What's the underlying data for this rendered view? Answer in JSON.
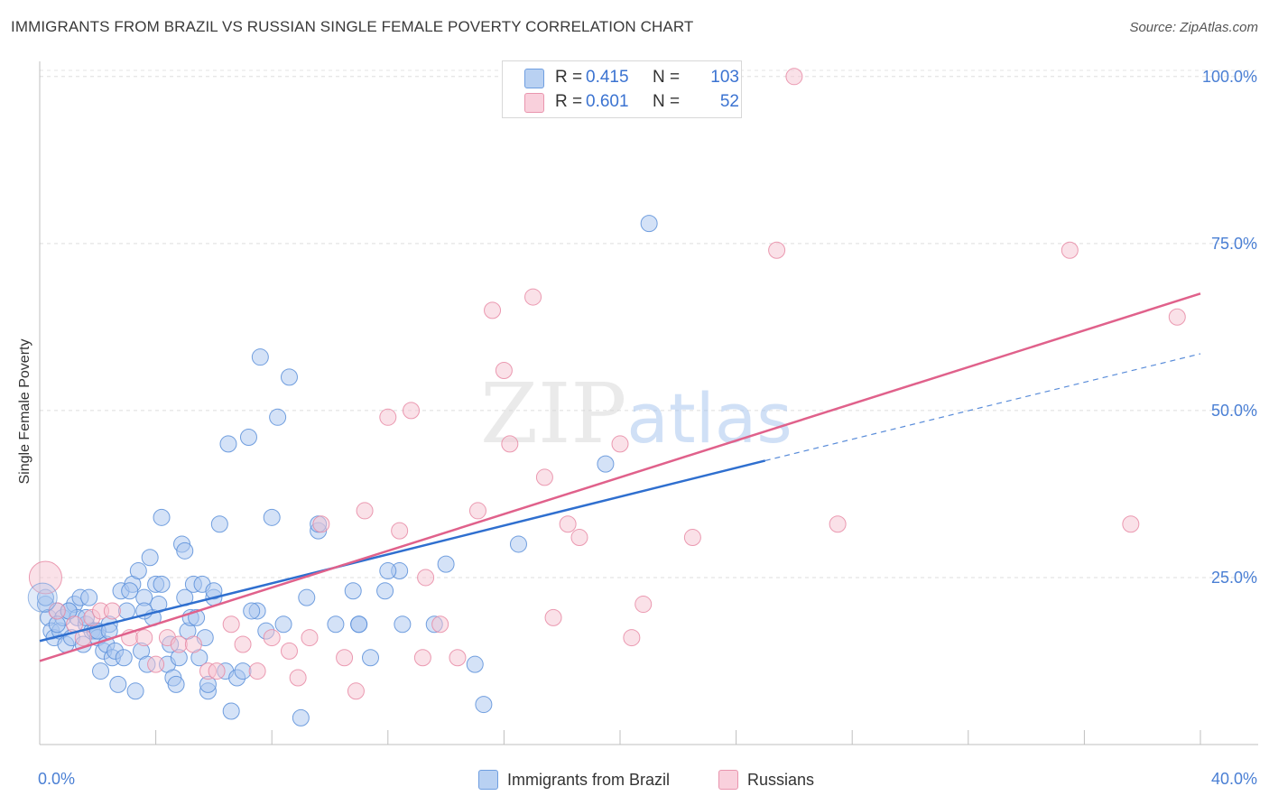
{
  "chart_data": {
    "type": "scatter",
    "title": "IMMIGRANTS FROM BRAZIL VS RUSSIAN SINGLE FEMALE POVERTY CORRELATION CHART",
    "source": "Source: ZipAtlas.com",
    "xlabel": "",
    "ylabel": "Single Female Poverty",
    "xlim": [
      0,
      40
    ],
    "ylim": [
      0,
      102
    ],
    "x_tick_labels": [
      "0.0%",
      "40.0%"
    ],
    "y_ticks": [
      {
        "value": 25,
        "label": "25.0%"
      },
      {
        "value": 50,
        "label": "50.0%"
      },
      {
        "value": 75,
        "label": "75.0%"
      },
      {
        "value": 100,
        "label": "100.0%"
      }
    ],
    "grid": true,
    "watermark": "ZIPatlas",
    "legend": [
      {
        "r_label": "R =",
        "r_value": "0.415",
        "n_label": "N =",
        "n_value": "103"
      },
      {
        "r_label": "R =",
        "r_value": "0.601",
        "n_label": "N =",
        "n_value": "52"
      }
    ],
    "series": [
      {
        "name": "Immigrants from Brazil",
        "color": "#5b8fd9",
        "fill": "#a9c6ef",
        "trend": {
          "x0": 0,
          "y0": 15.5,
          "x1": 25,
          "y1": 42.5,
          "dash_to_x": 40,
          "dash_to_y": 58.5,
          "color": "#2f6fcf"
        },
        "points": [
          [
            0.2,
            21
          ],
          [
            0.3,
            19
          ],
          [
            0.4,
            17
          ],
          [
            0.5,
            16
          ],
          [
            0.6,
            20
          ],
          [
            0.7,
            17
          ],
          [
            0.8,
            19
          ],
          [
            0.9,
            15
          ],
          [
            1.0,
            20
          ],
          [
            1.1,
            16
          ],
          [
            1.2,
            21
          ],
          [
            1.3,
            19
          ],
          [
            1.4,
            22
          ],
          [
            1.5,
            15
          ],
          [
            1.6,
            18
          ],
          [
            1.7,
            22
          ],
          [
            1.8,
            17
          ],
          [
            1.9,
            17
          ],
          [
            2.0,
            16
          ],
          [
            2.1,
            11
          ],
          [
            2.2,
            14
          ],
          [
            2.3,
            15
          ],
          [
            2.4,
            18
          ],
          [
            2.5,
            13
          ],
          [
            2.6,
            14
          ],
          [
            2.7,
            9
          ],
          [
            2.8,
            23
          ],
          [
            2.9,
            13
          ],
          [
            3.0,
            20
          ],
          [
            3.2,
            24
          ],
          [
            3.3,
            8
          ],
          [
            3.4,
            26
          ],
          [
            3.5,
            14
          ],
          [
            3.6,
            22
          ],
          [
            3.7,
            12
          ],
          [
            3.8,
            28
          ],
          [
            3.9,
            19
          ],
          [
            4.0,
            24
          ],
          [
            4.1,
            21
          ],
          [
            4.2,
            34
          ],
          [
            4.4,
            12
          ],
          [
            4.5,
            15
          ],
          [
            4.6,
            10
          ],
          [
            4.7,
            9
          ],
          [
            4.8,
            13
          ],
          [
            4.9,
            30
          ],
          [
            5.0,
            29
          ],
          [
            5.1,
            17
          ],
          [
            5.2,
            19
          ],
          [
            5.3,
            24
          ],
          [
            5.4,
            19
          ],
          [
            5.5,
            13
          ],
          [
            5.6,
            24
          ],
          [
            5.7,
            16
          ],
          [
            5.8,
            8
          ],
          [
            6.0,
            22
          ],
          [
            6.2,
            33
          ],
          [
            6.4,
            11
          ],
          [
            6.5,
            45
          ],
          [
            6.6,
            5
          ],
          [
            6.8,
            10
          ],
          [
            7.0,
            11
          ],
          [
            7.2,
            46
          ],
          [
            7.5,
            20
          ],
          [
            7.6,
            58
          ],
          [
            7.8,
            17
          ],
          [
            8.0,
            34
          ],
          [
            8.2,
            49
          ],
          [
            8.4,
            18
          ],
          [
            8.6,
            55
          ],
          [
            9.0,
            4
          ],
          [
            9.2,
            22
          ],
          [
            9.6,
            32
          ],
          [
            10.2,
            18
          ],
          [
            10.8,
            23
          ],
          [
            11.0,
            18
          ],
          [
            11.4,
            13
          ],
          [
            11.9,
            23
          ],
          [
            12.4,
            26
          ],
          [
            12.5,
            18
          ],
          [
            13.6,
            18
          ],
          [
            14.0,
            27
          ],
          [
            15.3,
            6
          ],
          [
            16.5,
            30
          ],
          [
            19.5,
            42
          ],
          [
            21.0,
            78
          ],
          [
            0.2,
            22
          ],
          [
            0.6,
            18
          ],
          [
            1.0,
            20
          ],
          [
            1.6,
            19
          ],
          [
            2.0,
            17
          ],
          [
            2.4,
            17
          ],
          [
            3.1,
            23
          ],
          [
            3.6,
            20
          ],
          [
            4.2,
            24
          ],
          [
            5.0,
            22
          ],
          [
            5.8,
            9
          ],
          [
            6.0,
            23
          ],
          [
            7.3,
            20
          ],
          [
            9.6,
            33
          ],
          [
            11.0,
            18
          ],
          [
            12.0,
            26
          ],
          [
            15.0,
            12
          ]
        ]
      },
      {
        "name": "Russians",
        "color": "#e889a5",
        "fill": "#f6c3d2",
        "trend": {
          "x0": 0,
          "y0": 12.5,
          "x1": 40,
          "y1": 67.5,
          "color": "#e0618b"
        },
        "points": [
          [
            0.2,
            25
          ],
          [
            0.6,
            20
          ],
          [
            1.2,
            18
          ],
          [
            1.8,
            19
          ],
          [
            2.1,
            20
          ],
          [
            3.1,
            16
          ],
          [
            3.6,
            16
          ],
          [
            4.0,
            12
          ],
          [
            4.4,
            16
          ],
          [
            4.8,
            15
          ],
          [
            5.3,
            15
          ],
          [
            5.8,
            11
          ],
          [
            6.1,
            11
          ],
          [
            6.6,
            18
          ],
          [
            7.0,
            15
          ],
          [
            7.5,
            11
          ],
          [
            8.0,
            16
          ],
          [
            8.6,
            14
          ],
          [
            8.9,
            10
          ],
          [
            9.3,
            16
          ],
          [
            9.7,
            33
          ],
          [
            10.5,
            13
          ],
          [
            10.9,
            8
          ],
          [
            11.2,
            35
          ],
          [
            12.0,
            49
          ],
          [
            12.4,
            32
          ],
          [
            12.8,
            50
          ],
          [
            13.2,
            13
          ],
          [
            13.3,
            25
          ],
          [
            13.8,
            18
          ],
          [
            14.4,
            13
          ],
          [
            15.1,
            35
          ],
          [
            15.6,
            65
          ],
          [
            16.0,
            56
          ],
          [
            16.2,
            45
          ],
          [
            17.0,
            67
          ],
          [
            17.4,
            40
          ],
          [
            17.7,
            19
          ],
          [
            18.2,
            33
          ],
          [
            18.6,
            31
          ],
          [
            20.0,
            45
          ],
          [
            20.4,
            16
          ],
          [
            20.8,
            21
          ],
          [
            22.5,
            31
          ],
          [
            25.4,
            74
          ],
          [
            26.0,
            100
          ],
          [
            27.5,
            33
          ],
          [
            35.5,
            74
          ],
          [
            37.6,
            33
          ],
          [
            39.2,
            64
          ],
          [
            1.5,
            16
          ],
          [
            2.5,
            20
          ]
        ]
      }
    ]
  }
}
